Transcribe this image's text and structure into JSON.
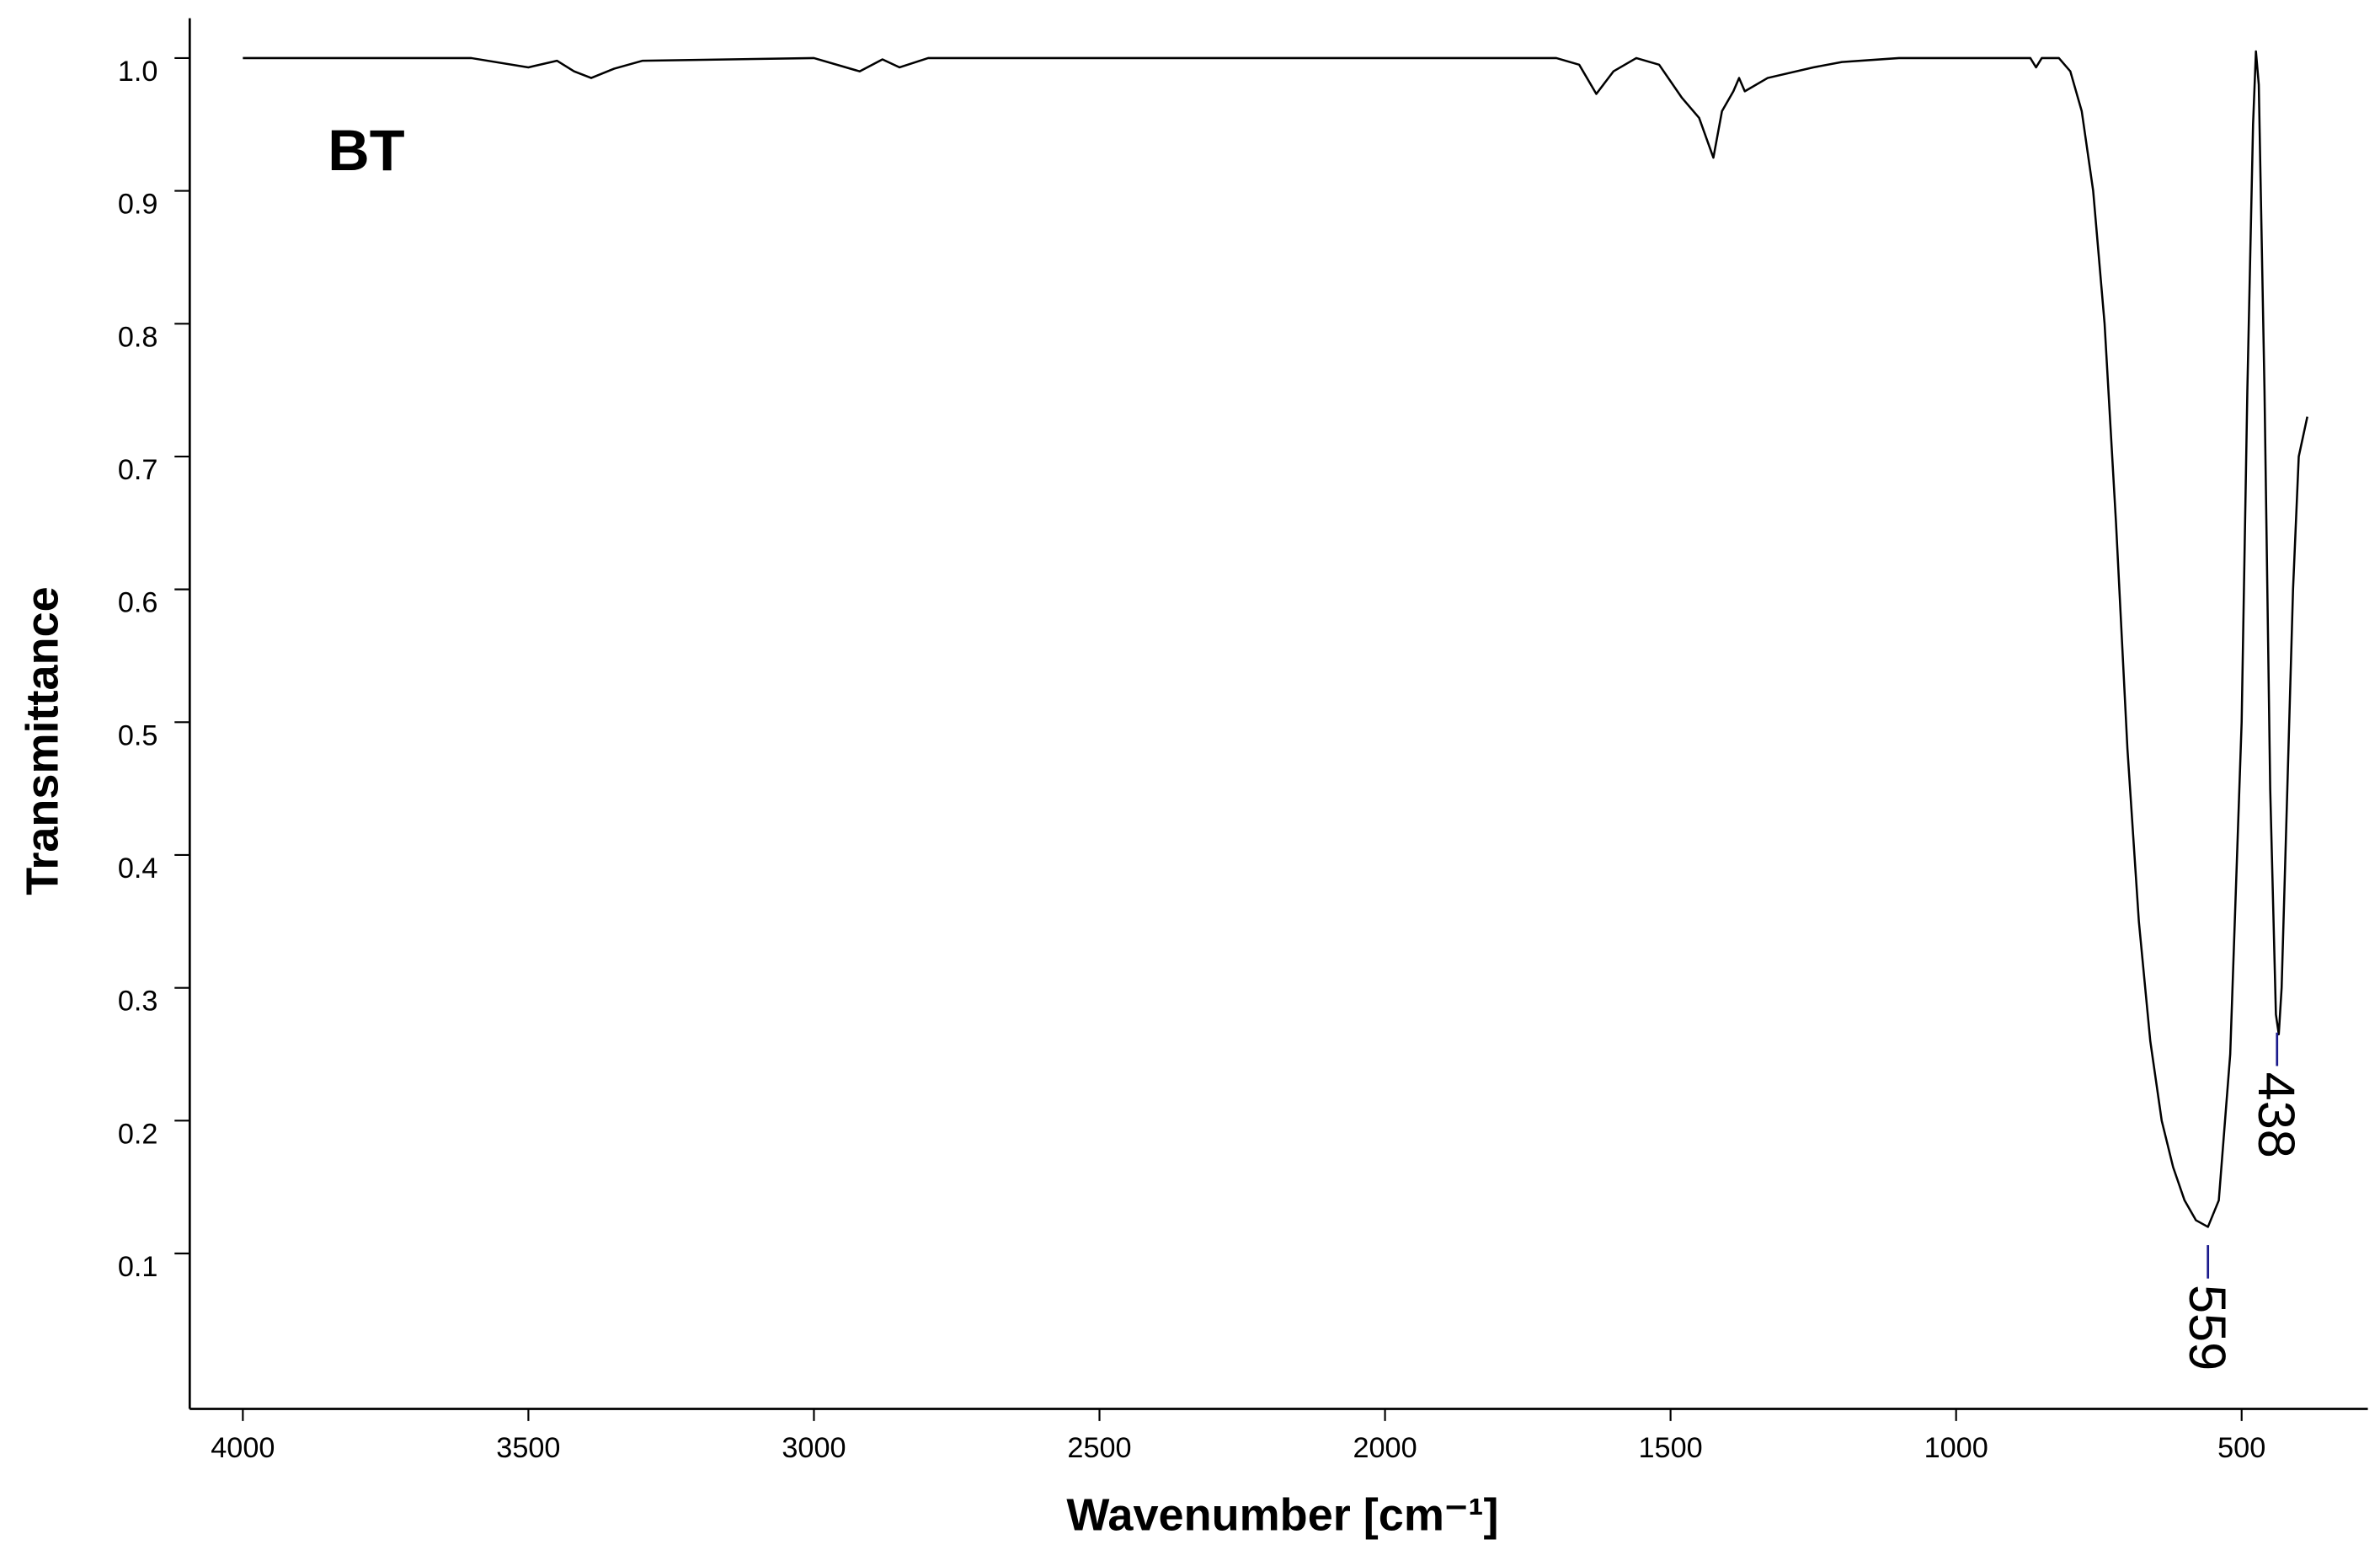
{
  "chart_data": {
    "type": "line",
    "label": "BT",
    "x_label": "Wavenumber [cm⁻¹]",
    "y_label": "Transmittance",
    "x": [
      4000,
      3600,
      3500,
      3450,
      3420,
      3390,
      3350,
      3300,
      3000,
      2920,
      2880,
      2850,
      2800,
      1700,
      1660,
      1630,
      1600,
      1560,
      1520,
      1480,
      1450,
      1425,
      1410,
      1390,
      1380,
      1370,
      1330,
      1250,
      1200,
      1100,
      870,
      860,
      850,
      820,
      800,
      780,
      760,
      740,
      720,
      700,
      680,
      660,
      640,
      620,
      600,
      580,
      559,
      540,
      520,
      500,
      490,
      480,
      475,
      470,
      460,
      450,
      440,
      435,
      430,
      420,
      410,
      400,
      385
    ],
    "values": [
      1.0,
      1.0,
      0.993,
      0.998,
      0.99,
      0.985,
      0.992,
      0.998,
      1.0,
      0.99,
      0.999,
      0.993,
      1.0,
      1.0,
      0.995,
      0.973,
      0.99,
      1.0,
      0.995,
      0.97,
      0.955,
      0.925,
      0.96,
      0.975,
      0.985,
      0.975,
      0.985,
      0.993,
      0.997,
      1.0,
      1.0,
      0.993,
      1.0,
      1.0,
      0.99,
      0.96,
      0.9,
      0.8,
      0.65,
      0.48,
      0.35,
      0.26,
      0.2,
      0.165,
      0.14,
      0.125,
      0.12,
      0.14,
      0.25,
      0.5,
      0.75,
      0.95,
      1.005,
      0.98,
      0.75,
      0.45,
      0.28,
      0.265,
      0.3,
      0.45,
      0.6,
      0.7,
      0.73
    ],
    "color": "#000000",
    "annotations": [
      559,
      438
    ],
    "annotation_color": "#1a1a8c",
    "xlim": [
      4093,
      279
    ],
    "ylim": [
      -0.017,
      1.03
    ],
    "xticks": [
      4000,
      3500,
      3000,
      2500,
      2000,
      1500,
      1000,
      500
    ],
    "yticks": [
      0.1,
      0.2,
      0.3,
      0.4,
      0.5,
      0.6,
      0.7,
      0.8,
      0.9,
      {
        "value": 1.0,
        "label": "1.0"
      }
    ]
  }
}
